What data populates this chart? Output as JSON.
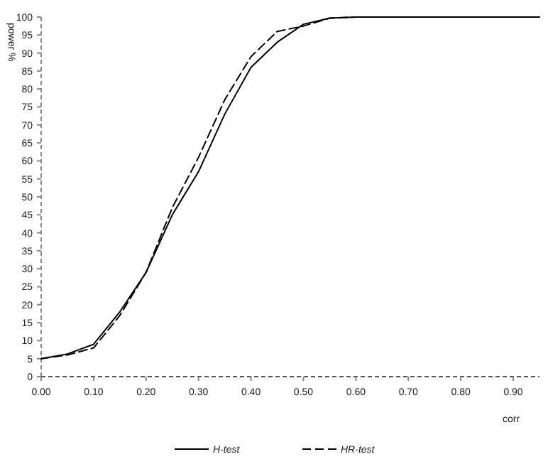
{
  "chart_data": {
    "type": "line",
    "xlabel": "corr",
    "ylabel": "power %",
    "x": [
      0,
      0.05,
      0.1,
      0.15,
      0.2,
      0.25,
      0.3,
      0.35,
      0.4,
      0.45,
      0.5,
      0.55,
      0.6,
      0.65,
      0.7,
      0.75,
      0.8,
      0.85,
      0.9,
      0.95
    ],
    "series": [
      {
        "name": "H-test",
        "color": "#000000",
        "line_style": "solid",
        "values": [
          5,
          6.3,
          9,
          18,
          29,
          45,
          57,
          73,
          86,
          93,
          98,
          99.7,
          100,
          100,
          100,
          100,
          100,
          100,
          100,
          100
        ]
      },
      {
        "name": "HR-test",
        "color": "#000000",
        "line_style": "dashed",
        "values": [
          5,
          6,
          8,
          17,
          29,
          47,
          61,
          77,
          89,
          96,
          97.5,
          99.7,
          100,
          100,
          100,
          100,
          100,
          100,
          100,
          100
        ]
      }
    ],
    "xlim": [
      0,
      0.95
    ],
    "xticks": [
      {
        "value": 0,
        "label": "0.00"
      },
      {
        "value": 0.1,
        "label": "0.10"
      },
      {
        "value": 0.2,
        "label": "0.20"
      },
      {
        "value": 0.3,
        "label": "0.30"
      },
      {
        "value": 0.4,
        "label": "0.40"
      },
      {
        "value": 0.5,
        "label": "0.50"
      },
      {
        "value": 0.6,
        "label": "0.60"
      },
      {
        "value": 0.7,
        "label": "0.70"
      },
      {
        "value": 0.8,
        "label": "0.80"
      },
      {
        "value": 0.9,
        "label": "0.90"
      }
    ],
    "ylim": [
      0,
      100
    ],
    "yticks": [
      0,
      5,
      10,
      15,
      20,
      25,
      30,
      35,
      40,
      45,
      50,
      55,
      60,
      65,
      70,
      75,
      80,
      85,
      90,
      95,
      100
    ],
    "grid": false,
    "legend": "bottom",
    "marker": "none"
  }
}
